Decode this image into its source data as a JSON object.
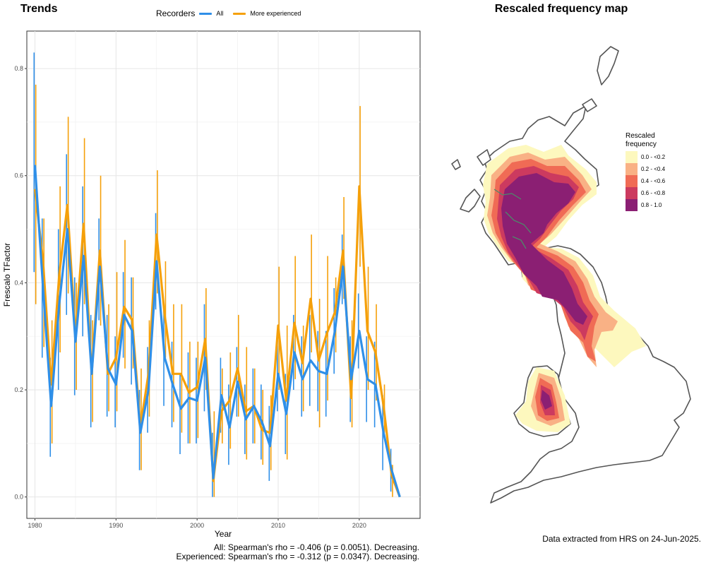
{
  "left_panel": {
    "title": "Trends",
    "legend": {
      "title": "Recorders",
      "items": [
        {
          "label": "All",
          "color": "#2f8fe8"
        },
        {
          "label": "More experienced",
          "color": "#f5a00a"
        }
      ]
    },
    "stats": [
      "All: Spearman's rho = -0.406 (p = 0.0051). Decreasing.",
      "Experienced: Spearman's rho = -0.312 (p = 0.0347). Decreasing."
    ]
  },
  "chart_data": {
    "type": "line",
    "xlabel": "Year",
    "ylabel": "Frescalo TFactor",
    "xlim": [
      1979,
      2027.5
    ],
    "ylim": [
      -0.04,
      0.87
    ],
    "xticks": [
      1980,
      1990,
      2000,
      2010,
      2020
    ],
    "yticks": [
      0.0,
      0.2,
      0.4,
      0.6,
      0.8
    ],
    "ytick_labels": [
      "0.0",
      "0.2",
      "0.4",
      "0.6",
      "0.8"
    ],
    "grid": true,
    "legend_position": "top",
    "x": [
      1980,
      1981,
      1982,
      1983,
      1984,
      1985,
      1986,
      1987,
      1988,
      1989,
      1990,
      1991,
      1992,
      1993,
      1994,
      1995,
      1996,
      1997,
      1998,
      1999,
      2000,
      2001,
      2002,
      2003,
      2004,
      2005,
      2006,
      2007,
      2008,
      2009,
      2010,
      2011,
      2012,
      2013,
      2014,
      2015,
      2016,
      2017,
      2018,
      2019,
      2020,
      2021,
      2022,
      2023,
      2024,
      2025
    ],
    "series": [
      {
        "name": "All",
        "color": "#2f8fe8",
        "values": [
          0.62,
          0.39,
          0.17,
          0.36,
          0.5,
          0.29,
          0.45,
          0.23,
          0.43,
          0.24,
          0.21,
          0.34,
          0.31,
          0.12,
          0.2,
          0.44,
          0.26,
          0.21,
          0.165,
          0.185,
          0.18,
          0.26,
          0.035,
          0.19,
          0.13,
          0.215,
          0.145,
          0.17,
          0.14,
          0.095,
          0.23,
          0.155,
          0.27,
          0.22,
          0.255,
          0.235,
          0.23,
          0.31,
          0.43,
          0.22,
          0.31,
          0.22,
          0.21,
          0.12,
          0.05,
          0.0
        ],
        "upper": [
          0.83,
          0.52,
          0.26,
          0.5,
          0.64,
          0.41,
          0.58,
          0.34,
          0.52,
          0.34,
          0.3,
          0.42,
          0.41,
          0.2,
          0.28,
          0.53,
          0.35,
          0.29,
          0.23,
          0.27,
          0.26,
          0.36,
          0.12,
          0.26,
          0.21,
          0.28,
          0.21,
          0.24,
          0.21,
          0.17,
          0.3,
          0.23,
          0.34,
          0.3,
          0.34,
          0.31,
          0.31,
          0.39,
          0.49,
          0.3,
          0.38,
          0.3,
          0.29,
          0.19,
          0.09,
          0.0
        ],
        "lower": [
          0.42,
          0.26,
          0.075,
          0.2,
          0.34,
          0.19,
          0.3,
          0.13,
          0.33,
          0.15,
          0.13,
          0.26,
          0.21,
          0.05,
          0.12,
          0.35,
          0.17,
          0.13,
          0.08,
          0.1,
          0.1,
          0.16,
          0.0,
          0.12,
          0.06,
          0.15,
          0.08,
          0.1,
          0.07,
          0.03,
          0.16,
          0.08,
          0.2,
          0.15,
          0.17,
          0.16,
          0.15,
          0.23,
          0.36,
          0.14,
          0.24,
          0.14,
          0.13,
          0.05,
          0.01,
          0.0
        ]
      },
      {
        "name": "More experienced",
        "color": "#f5a00a",
        "values": [
          0.575,
          0.44,
          0.21,
          0.415,
          0.545,
          0.3,
          0.51,
          0.23,
          0.46,
          0.23,
          0.26,
          0.355,
          0.33,
          0.13,
          0.23,
          0.49,
          0.34,
          0.23,
          0.23,
          0.195,
          0.205,
          0.295,
          0.03,
          0.16,
          0.18,
          0.24,
          0.16,
          0.17,
          0.125,
          0.12,
          0.32,
          0.18,
          0.325,
          0.25,
          0.37,
          0.255,
          0.305,
          0.345,
          0.46,
          0.185,
          0.58,
          0.31,
          0.27,
          0.17,
          0.04,
          0.0
        ],
        "upper": [
          0.77,
          0.52,
          0.33,
          0.58,
          0.71,
          0.4,
          0.67,
          0.33,
          0.6,
          0.36,
          0.42,
          0.48,
          0.41,
          0.24,
          0.33,
          0.61,
          0.44,
          0.36,
          0.36,
          0.29,
          0.29,
          0.39,
          0.16,
          0.24,
          0.27,
          0.34,
          0.28,
          0.24,
          0.2,
          0.19,
          0.43,
          0.32,
          0.45,
          0.32,
          0.49,
          0.37,
          0.45,
          0.41,
          0.56,
          0.33,
          0.73,
          0.43,
          0.36,
          0.21,
          0.06,
          0.0
        ],
        "lower": [
          0.36,
          0.28,
          0.1,
          0.27,
          0.38,
          0.2,
          0.36,
          0.14,
          0.32,
          0.16,
          0.16,
          0.24,
          0.24,
          0.05,
          0.15,
          0.38,
          0.26,
          0.14,
          0.12,
          0.1,
          0.11,
          0.2,
          0.0,
          0.1,
          0.09,
          0.15,
          0.07,
          0.1,
          0.06,
          0.05,
          0.2,
          0.07,
          0.22,
          0.16,
          0.27,
          0.13,
          0.18,
          0.27,
          0.37,
          0.13,
          0.43,
          0.2,
          0.18,
          0.12,
          0.0,
          0.0
        ]
      }
    ]
  },
  "right_panel": {
    "title": "Rescaled frequency map",
    "legend": {
      "title_lines": [
        "Rescaled",
        "frequency"
      ],
      "items": [
        {
          "label": "0.0 - <0.2",
          "color": "#fdf8be"
        },
        {
          "label": "0.2 - <0.4",
          "color": "#f9b185"
        },
        {
          "label": "0.4 - <0.6",
          "color": "#f06b55"
        },
        {
          "label": "0.6 - <0.8",
          "color": "#cc3a5f"
        },
        {
          "label": "0.8 - 1.0",
          "color": "#8b1f73"
        }
      ]
    },
    "note": "Data extracted from HRS on 24-Jun-2025."
  }
}
